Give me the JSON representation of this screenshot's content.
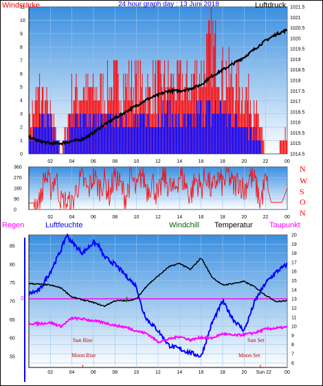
{
  "chart_data": [
    {
      "type": "line",
      "title": "24 hour graph day : 13 Juni 2018",
      "left_label": "Windstärke",
      "right_label": "Luftdruck",
      "x_ticks": [
        "02",
        "04",
        "06",
        "08",
        "10",
        "12",
        "14",
        "16",
        "18",
        "20",
        "22",
        "00"
      ],
      "left_ticks": [
        "0",
        "1",
        "2",
        "3",
        "4",
        "5",
        "6",
        "7",
        "8",
        "9",
        "10",
        "11"
      ],
      "right_ticks": [
        "1014.5",
        "1015",
        "1015.5",
        "1016",
        "1016.5",
        "1017",
        "1017.5",
        "1018",
        "1018.5",
        "1019",
        "1019.5",
        "1020",
        "1020.5",
        "1021",
        "1021.5"
      ],
      "ylim_left": [
        0,
        11
      ],
      "ylim_right": [
        1014.5,
        1021.5
      ],
      "series": [
        {
          "name": "Luftdruck",
          "color": "#000000",
          "x": [
            0,
            1,
            2,
            3,
            4,
            5,
            6,
            7,
            8,
            9,
            10,
            11,
            12,
            13,
            14,
            15,
            16,
            17,
            18,
            19,
            20,
            21,
            22,
            23,
            24
          ],
          "values": [
            1015.3,
            1015.1,
            1015.0,
            1015.0,
            1015.1,
            1015.2,
            1015.5,
            1015.9,
            1016.2,
            1016.5,
            1016.8,
            1017.1,
            1017.3,
            1017.5,
            1017.5,
            1017.6,
            1017.8,
            1018.2,
            1018.5,
            1018.8,
            1019.1,
            1019.5,
            1019.9,
            1020.2,
            1020.4
          ]
        },
        {
          "name": "Wind average",
          "color": "#0000ff",
          "x": [
            0,
            1,
            2,
            3,
            4,
            5,
            6,
            7,
            8,
            9,
            10,
            11,
            12,
            13,
            14,
            15,
            16,
            17,
            18,
            19,
            20,
            21,
            22,
            23,
            24
          ],
          "values": [
            1,
            3,
            3,
            0,
            3,
            3,
            3,
            3,
            3,
            3,
            3,
            3,
            3,
            4,
            3,
            3,
            4,
            4,
            4,
            3,
            3,
            2,
            0,
            0,
            0
          ]
        },
        {
          "name": "Wind gust",
          "color": "#ff0000",
          "x": [
            0,
            1,
            2,
            3,
            4,
            5,
            6,
            7,
            8,
            9,
            10,
            11,
            12,
            13,
            14,
            15,
            16,
            17,
            18,
            19,
            20,
            21,
            22,
            23,
            24
          ],
          "values": [
            3,
            6,
            4,
            0,
            6,
            6,
            6,
            6,
            7,
            7,
            7,
            6,
            7,
            7,
            7,
            7,
            8,
            11,
            8,
            7,
            6,
            5,
            0,
            0,
            2
          ]
        }
      ]
    },
    {
      "type": "line",
      "direction_labels": [
        "N",
        "W",
        "S",
        "O",
        "N"
      ],
      "left_ticks": [
        "0",
        "90",
        "180",
        "270",
        "360"
      ],
      "x_ticks": [
        "02",
        "04",
        "06",
        "08",
        "10",
        "12",
        "14",
        "16",
        "18",
        "20",
        "22",
        "00"
      ],
      "ylim": [
        0,
        360
      ],
      "series": [
        {
          "name": "Windrichtung",
          "color": "#ff0000",
          "x": [
            0,
            0.5,
            1,
            1.5,
            2,
            2.5,
            3,
            3.5,
            4,
            4.5,
            5,
            5.5,
            6,
            6.5,
            7,
            7.5,
            8,
            8.5,
            9,
            9.5,
            10,
            10.5,
            11,
            11.5,
            12,
            12.5,
            13,
            13.5,
            14,
            14.5,
            15,
            15.5,
            16,
            16.5,
            17,
            17.5,
            18,
            18.5,
            19,
            19.5,
            20,
            20.5,
            21,
            21.5,
            22,
            22.5,
            23,
            23.5,
            24
          ],
          "values": [
            50,
            60,
            40,
            300,
            180,
            280,
            60,
            60,
            30,
            200,
            260,
            150,
            290,
            180,
            250,
            120,
            300,
            200,
            100,
            280,
            150,
            310,
            170,
            240,
            90,
            290,
            200,
            150,
            300,
            220,
            110,
            260,
            180,
            300,
            140,
            270,
            210,
            300,
            190,
            250,
            160,
            280,
            230,
            60,
            250,
            60,
            60,
            60,
            180
          ]
        }
      ]
    },
    {
      "type": "line",
      "labels": {
        "regen": "Regen",
        "luftfeuchte": "Luftfeuchte",
        "windchill": "Windchill",
        "temperatur": "Temperatur",
        "taupunkt": "Taupunkt"
      },
      "left_ticks": [
        "55",
        "60",
        "65",
        "70",
        "75",
        "80",
        "85"
      ],
      "right_ticks": [
        "6",
        "7",
        "8",
        "9",
        "10",
        "11",
        "12",
        "13",
        "14",
        "15",
        "16",
        "17",
        "18",
        "19",
        "20"
      ],
      "x_ticks": [
        "02",
        "04",
        "06",
        "08",
        "10",
        "12",
        "14",
        "16",
        "18",
        "20",
        "22",
        "00"
      ],
      "zero_label": "0",
      "sun_rise": "Sun Rise",
      "moon_rise": "Moon Rise",
      "sun_set": "Sun Set",
      "moon_set": "Moon Set",
      "sun_moon_axis": "Sun 22",
      "ylim_left": [
        52,
        88
      ],
      "ylim_right": [
        5.5,
        20
      ],
      "series": [
        {
          "name": "Luftfeuchte",
          "color": "#0000ff",
          "x": [
            0,
            1,
            2,
            3,
            3.5,
            4,
            5,
            6,
            6.5,
            7,
            8,
            9,
            10,
            10.5,
            11,
            12,
            13,
            14,
            15,
            16,
            17,
            18,
            19,
            20,
            21,
            22,
            23,
            24
          ],
          "values": [
            72,
            73,
            78,
            84,
            88,
            86,
            83,
            86,
            85,
            82,
            80,
            77,
            74,
            68,
            65,
            62,
            58,
            57,
            56,
            55,
            64,
            70,
            65,
            62,
            70,
            75,
            78,
            80
          ]
        },
        {
          "name": "Temperatur",
          "color": "#000000",
          "x": [
            0,
            1,
            2,
            3,
            4,
            5,
            6,
            7,
            8,
            9,
            10,
            11,
            12,
            13,
            14,
            15,
            16,
            17,
            18,
            19,
            20,
            21,
            22,
            23,
            24
          ],
          "values": [
            14.7,
            14.6,
            14.5,
            14.2,
            13.2,
            12.9,
            12.6,
            12.2,
            12.8,
            12.8,
            13.0,
            14.5,
            15.5,
            16.5,
            16.9,
            16.2,
            17.5,
            15.4,
            14.5,
            14.7,
            14.9,
            14.3,
            13.4,
            12.7,
            12.8
          ]
        },
        {
          "name": "Taupunkt",
          "color": "#ff00ff",
          "x": [
            0,
            1,
            2,
            3,
            4,
            5,
            6,
            7,
            8,
            9,
            10,
            11,
            12,
            13,
            14,
            15,
            16,
            17,
            18,
            19,
            20,
            21,
            22,
            23,
            24
          ],
          "values": [
            10.3,
            10.3,
            10.4,
            10.0,
            10.9,
            10.8,
            10.6,
            10.4,
            10.1,
            9.9,
            9.5,
            9.2,
            8.3,
            8.6,
            8.9,
            8.5,
            8.8,
            8.7,
            9.2,
            9.0,
            9.1,
            9.3,
            9.7,
            9.8,
            9.9
          ]
        }
      ]
    }
  ]
}
